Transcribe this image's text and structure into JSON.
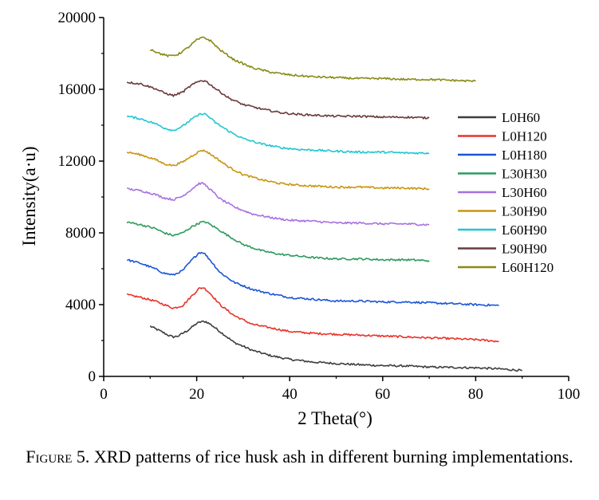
{
  "figure": {
    "caption_label": "Figure 5.",
    "caption_text": "XRD patterns of rice husk ash in different burning implementations."
  },
  "chart_data": {
    "type": "line",
    "xlabel": "2 Theta(°)",
    "ylabel": "Intensity(a·u)",
    "xlim": [
      0,
      100
    ],
    "ylim": [
      0,
      20000
    ],
    "xticks": [
      0,
      20,
      40,
      60,
      80,
      100
    ],
    "yticks": [
      0,
      4000,
      8000,
      12000,
      16000,
      20000
    ],
    "grid": false,
    "legend_position": "right",
    "series": [
      {
        "name": "L0H60",
        "color": "#3d3d3d",
        "points": [
          [
            10,
            2800
          ],
          [
            12,
            2550
          ],
          [
            14,
            2280
          ],
          [
            15,
            2200
          ],
          [
            16,
            2250
          ],
          [
            18,
            2550
          ],
          [
            20,
            2950
          ],
          [
            21,
            3050
          ],
          [
            22,
            3050
          ],
          [
            23,
            2900
          ],
          [
            25,
            2500
          ],
          [
            28,
            1900
          ],
          [
            32,
            1450
          ],
          [
            36,
            1150
          ],
          [
            40,
            950
          ],
          [
            45,
            800
          ],
          [
            50,
            720
          ],
          [
            55,
            650
          ],
          [
            60,
            600
          ],
          [
            65,
            580
          ],
          [
            70,
            520
          ],
          [
            75,
            500
          ],
          [
            80,
            480
          ],
          [
            85,
            420
          ],
          [
            90,
            330
          ]
        ]
      },
      {
        "name": "L0H120",
        "color": "#e8332b",
        "points": [
          [
            5,
            4550
          ],
          [
            8,
            4400
          ],
          [
            11,
            4200
          ],
          [
            13,
            4000
          ],
          [
            15,
            3800
          ],
          [
            17,
            3950
          ],
          [
            19,
            4500
          ],
          [
            20.5,
            4900
          ],
          [
            21.5,
            4950
          ],
          [
            23,
            4600
          ],
          [
            25,
            4000
          ],
          [
            28,
            3400
          ],
          [
            32,
            2900
          ],
          [
            36,
            2700
          ],
          [
            40,
            2500
          ],
          [
            45,
            2400
          ],
          [
            50,
            2350
          ],
          [
            55,
            2300
          ],
          [
            60,
            2250
          ],
          [
            65,
            2200
          ],
          [
            70,
            2150
          ],
          [
            75,
            2100
          ],
          [
            80,
            2050
          ],
          [
            85,
            1950
          ]
        ]
      },
      {
        "name": "L0H180",
        "color": "#1a56d6",
        "points": [
          [
            5,
            6500
          ],
          [
            8,
            6300
          ],
          [
            11,
            6000
          ],
          [
            13,
            5750
          ],
          [
            15,
            5650
          ],
          [
            17,
            5900
          ],
          [
            19,
            6500
          ],
          [
            20.5,
            6900
          ],
          [
            21.5,
            6900
          ],
          [
            23,
            6450
          ],
          [
            25,
            5800
          ],
          [
            28,
            5250
          ],
          [
            32,
            4850
          ],
          [
            36,
            4600
          ],
          [
            40,
            4400
          ],
          [
            45,
            4300
          ],
          [
            50,
            4200
          ],
          [
            55,
            4200
          ],
          [
            60,
            4150
          ],
          [
            65,
            4150
          ],
          [
            70,
            4100
          ],
          [
            75,
            4050
          ],
          [
            80,
            4000
          ],
          [
            85,
            3950
          ]
        ]
      },
      {
        "name": "L30H30",
        "color": "#2e9a5e",
        "points": [
          [
            5,
            8600
          ],
          [
            8,
            8450
          ],
          [
            11,
            8250
          ],
          [
            13,
            8000
          ],
          [
            15,
            7850
          ],
          [
            17,
            8000
          ],
          [
            19,
            8350
          ],
          [
            21,
            8600
          ],
          [
            22,
            8600
          ],
          [
            24,
            8300
          ],
          [
            27,
            7800
          ],
          [
            30,
            7350
          ],
          [
            34,
            7000
          ],
          [
            38,
            6800
          ],
          [
            42,
            6700
          ],
          [
            46,
            6600
          ],
          [
            50,
            6550
          ],
          [
            55,
            6550
          ],
          [
            60,
            6500
          ],
          [
            65,
            6500
          ],
          [
            70,
            6450
          ]
        ]
      },
      {
        "name": "L30H60",
        "color": "#a771e0",
        "points": [
          [
            5,
            10450
          ],
          [
            8,
            10350
          ],
          [
            11,
            10150
          ],
          [
            13,
            9950
          ],
          [
            15,
            9850
          ],
          [
            17,
            10050
          ],
          [
            19,
            10450
          ],
          [
            20.5,
            10750
          ],
          [
            21.5,
            10750
          ],
          [
            23,
            10400
          ],
          [
            25,
            9900
          ],
          [
            28,
            9450
          ],
          [
            32,
            9050
          ],
          [
            36,
            8850
          ],
          [
            40,
            8700
          ],
          [
            45,
            8650
          ],
          [
            50,
            8550
          ],
          [
            55,
            8550
          ],
          [
            60,
            8500
          ],
          [
            65,
            8500
          ],
          [
            70,
            8450
          ]
        ]
      },
      {
        "name": "L30H90",
        "color": "#c99510",
        "points": [
          [
            5,
            12500
          ],
          [
            8,
            12350
          ],
          [
            11,
            12100
          ],
          [
            13,
            11850
          ],
          [
            15,
            11750
          ],
          [
            17,
            11950
          ],
          [
            19,
            12300
          ],
          [
            21,
            12600
          ],
          [
            22,
            12550
          ],
          [
            24,
            12200
          ],
          [
            27,
            11650
          ],
          [
            30,
            11250
          ],
          [
            34,
            10950
          ],
          [
            38,
            10750
          ],
          [
            42,
            10650
          ],
          [
            46,
            10600
          ],
          [
            50,
            10550
          ],
          [
            55,
            10550
          ],
          [
            60,
            10500
          ],
          [
            65,
            10500
          ],
          [
            70,
            10450
          ]
        ]
      },
      {
        "name": "L60H90",
        "color": "#1ec7cf",
        "points": [
          [
            5,
            14500
          ],
          [
            8,
            14350
          ],
          [
            11,
            14100
          ],
          [
            13,
            13850
          ],
          [
            15,
            13700
          ],
          [
            17,
            13950
          ],
          [
            19,
            14350
          ],
          [
            21,
            14650
          ],
          [
            22,
            14600
          ],
          [
            24,
            14150
          ],
          [
            27,
            13650
          ],
          [
            30,
            13250
          ],
          [
            34,
            12950
          ],
          [
            38,
            12750
          ],
          [
            42,
            12650
          ],
          [
            46,
            12600
          ],
          [
            50,
            12550
          ],
          [
            55,
            12500
          ],
          [
            60,
            12500
          ],
          [
            65,
            12450
          ],
          [
            70,
            12450
          ]
        ]
      },
      {
        "name": "L90H90",
        "color": "#6b3a3a",
        "points": [
          [
            5,
            16400
          ],
          [
            8,
            16300
          ],
          [
            11,
            16050
          ],
          [
            13,
            15800
          ],
          [
            15,
            15650
          ],
          [
            17,
            15850
          ],
          [
            19,
            16250
          ],
          [
            21,
            16500
          ],
          [
            22,
            16450
          ],
          [
            24,
            16050
          ],
          [
            27,
            15500
          ],
          [
            30,
            15150
          ],
          [
            34,
            14900
          ],
          [
            38,
            14700
          ],
          [
            42,
            14600
          ],
          [
            46,
            14550
          ],
          [
            50,
            14500
          ],
          [
            55,
            14500
          ],
          [
            60,
            14450
          ],
          [
            65,
            14450
          ],
          [
            70,
            14400
          ]
        ]
      },
      {
        "name": "L60H120",
        "color": "#8a8a14",
        "points": [
          [
            10,
            18250
          ],
          [
            12,
            18000
          ],
          [
            14,
            17850
          ],
          [
            16,
            17950
          ],
          [
            18,
            18300
          ],
          [
            20,
            18750
          ],
          [
            21.5,
            18900
          ],
          [
            23,
            18700
          ],
          [
            25,
            18200
          ],
          [
            28,
            17650
          ],
          [
            32,
            17200
          ],
          [
            36,
            16950
          ],
          [
            40,
            16800
          ],
          [
            45,
            16700
          ],
          [
            50,
            16650
          ],
          [
            55,
            16600
          ],
          [
            60,
            16600
          ],
          [
            65,
            16550
          ],
          [
            70,
            16550
          ],
          [
            75,
            16500
          ],
          [
            80,
            16450
          ]
        ]
      }
    ]
  }
}
